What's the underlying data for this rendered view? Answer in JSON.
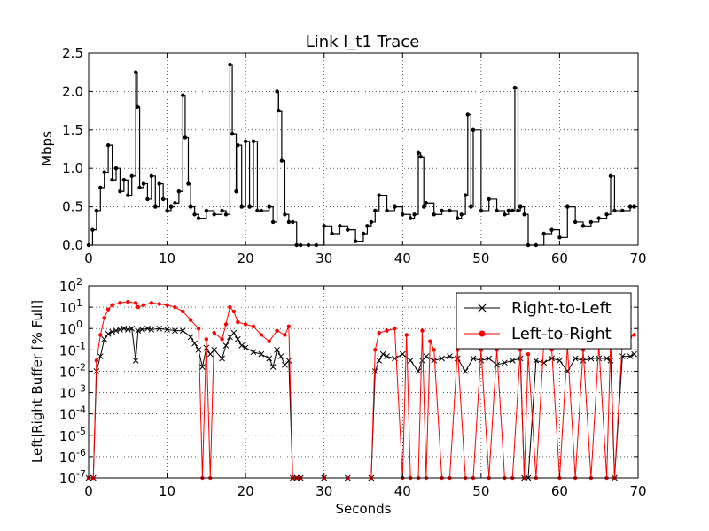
{
  "chart_data": [
    {
      "type": "line",
      "title": "Link l_t1 Trace",
      "xlabel": "",
      "ylabel": "Mbps",
      "xlim": [
        0,
        70
      ],
      "ylim": [
        0,
        2.5
      ],
      "grid": true,
      "xticks": [
        0,
        10,
        20,
        30,
        40,
        50,
        60,
        70
      ],
      "yticks": [
        0.0,
        0.5,
        1.0,
        1.5,
        2.0,
        2.5
      ],
      "xtick_labels": [
        "0",
        "10",
        "20",
        "30",
        "40",
        "50",
        "60",
        "70"
      ],
      "ytick_labels": [
        "0.0",
        "0.5",
        "1.0",
        "1.5",
        "2.0",
        "2.5"
      ],
      "color": "#000000",
      "x": [
        0.0,
        0.5,
        1.0,
        1.5,
        2.0,
        2.5,
        3.0,
        3.5,
        4.0,
        4.5,
        5.0,
        5.5,
        6.0,
        6.2,
        6.5,
        7.0,
        7.5,
        8.0,
        8.5,
        9.0,
        9.5,
        10.0,
        10.5,
        11.0,
        11.5,
        12.0,
        12.3,
        12.7,
        13.0,
        13.5,
        14.0,
        15.0,
        16.0,
        17.0,
        17.5,
        18.0,
        18.3,
        18.8,
        19.0,
        19.5,
        20.0,
        20.5,
        21.0,
        21.5,
        22.0,
        23.0,
        23.5,
        24.0,
        24.2,
        24.6,
        25.0,
        25.5,
        26.0,
        26.5,
        27.0,
        28.0,
        29.0,
        30.0,
        31.0,
        32.0,
        33.0,
        34.0,
        35.0,
        35.5,
        36.0,
        36.5,
        37.0,
        38.0,
        39.0,
        40.0,
        41.0,
        41.5,
        42.0,
        42.3,
        42.7,
        43.0,
        44.0,
        45.0,
        46.0,
        47.0,
        47.5,
        48.0,
        48.3,
        48.7,
        49.0,
        50.0,
        51.0,
        52.0,
        53.0,
        53.5,
        54.0,
        54.3,
        54.7,
        55.0,
        55.5,
        56.0,
        57.0,
        58.0,
        59.0,
        60.0,
        61.0,
        62.0,
        63.0,
        64.0,
        65.0,
        66.0,
        66.5,
        67.0,
        68.0,
        69.0,
        69.5
      ],
      "y": [
        0.0,
        0.2,
        0.45,
        0.75,
        0.95,
        1.3,
        0.85,
        1.0,
        0.7,
        0.85,
        0.65,
        0.9,
        2.25,
        1.8,
        0.75,
        0.8,
        0.6,
        0.9,
        0.5,
        0.8,
        0.6,
        0.45,
        0.5,
        0.55,
        0.7,
        1.95,
        1.4,
        0.8,
        0.5,
        0.4,
        0.35,
        0.45,
        0.4,
        0.45,
        0.4,
        2.35,
        1.45,
        0.7,
        1.3,
        0.5,
        1.35,
        0.5,
        1.35,
        0.45,
        0.45,
        0.5,
        0.3,
        2.0,
        1.75,
        1.1,
        0.4,
        0.3,
        0.3,
        0.0,
        0.0,
        0.0,
        0.0,
        0.25,
        0.15,
        0.25,
        0.2,
        0.05,
        0.15,
        0.25,
        0.3,
        0.45,
        0.65,
        0.45,
        0.5,
        0.4,
        0.35,
        0.4,
        1.2,
        1.15,
        0.5,
        0.55,
        0.4,
        0.45,
        0.45,
        0.35,
        0.4,
        0.65,
        1.7,
        0.5,
        1.5,
        0.45,
        0.6,
        0.45,
        0.4,
        0.45,
        0.45,
        2.05,
        0.45,
        0.5,
        0.4,
        0.0,
        0.0,
        0.15,
        0.2,
        0.1,
        0.5,
        0.3,
        0.25,
        0.3,
        0.35,
        0.4,
        0.9,
        0.45,
        0.45,
        0.5,
        0.5
      ]
    },
    {
      "type": "line",
      "title": "",
      "xlabel": "Seconds",
      "ylabel": "Left|Right Buffer [% Full]",
      "xlim": [
        0,
        70
      ],
      "ylim": [
        1e-07,
        100
      ],
      "yscale": "log",
      "grid": true,
      "xticks": [
        0,
        10,
        20,
        30,
        40,
        50,
        60,
        70
      ],
      "xtick_labels": [
        "0",
        "10",
        "20",
        "30",
        "40",
        "50",
        "60",
        "70"
      ],
      "yticks": [
        -7,
        -6,
        -5,
        -4,
        -3,
        -2,
        -1,
        0,
        1,
        2
      ],
      "ytick_labels": [
        "10",
        "10",
        "10",
        "10",
        "10",
        "10",
        "10",
        "10",
        "10",
        "10"
      ],
      "ytick_exponents": [
        "-7",
        "-6",
        "-5",
        "-4",
        "-3",
        "-2",
        "-1",
        "0",
        "1",
        "2"
      ],
      "legend_position": "top-right",
      "series": [
        {
          "name": "Right-to-Left",
          "color": "#000000",
          "marker": "x",
          "x": [
            0.0,
            0.6,
            1.0,
            1.5,
            2.0,
            2.5,
            3.0,
            3.5,
            4.0,
            4.5,
            5.0,
            5.5,
            6.0,
            6.3,
            6.8,
            7.5,
            8.0,
            9.0,
            10.0,
            11.0,
            12.0,
            13.0,
            13.5,
            14.0,
            14.5,
            15.0,
            15.5,
            16.0,
            17.0,
            17.5,
            18.0,
            18.5,
            19.0,
            19.5,
            20.0,
            21.0,
            22.0,
            23.0,
            23.5,
            24.0,
            24.5,
            25.0,
            25.5,
            26.0,
            26.5,
            27.0,
            30.0,
            33.0,
            36.0,
            36.5,
            37.0,
            37.5,
            38.0,
            39.0,
            40.0,
            41.0,
            42.0,
            42.5,
            43.0,
            44.0,
            45.0,
            46.0,
            47.0,
            48.0,
            49.0,
            50.0,
            51.0,
            52.0,
            53.0,
            54.0,
            55.0,
            55.5,
            56.0,
            57.0,
            58.0,
            59.0,
            60.0,
            61.0,
            62.0,
            63.0,
            64.0,
            65.0,
            66.0,
            66.5,
            67.0,
            68.0,
            69.0,
            69.5
          ],
          "y_log10": [
            -7,
            -7,
            -2,
            -1.3,
            -0.5,
            -0.25,
            -0.15,
            -0.1,
            -0.05,
            0.0,
            -0.05,
            0.0,
            -1.5,
            -0.1,
            -0.05,
            0.0,
            -0.05,
            0.0,
            -0.05,
            -0.1,
            -0.1,
            -0.4,
            -0.7,
            -1.0,
            -1.8,
            -0.9,
            -1.2,
            -1.0,
            -1.4,
            -0.8,
            -0.4,
            -0.2,
            -0.5,
            -0.8,
            -0.9,
            -1.1,
            -1.2,
            -1.4,
            -1.8,
            -1.0,
            -1.3,
            -1.7,
            -1.5,
            -7,
            -7,
            -7,
            -7,
            -7,
            -7,
            -2.0,
            -1.5,
            -1.2,
            -1.3,
            -1.4,
            -1.2,
            -1.5,
            -2.0,
            -1.5,
            -1.3,
            -1.5,
            -1.4,
            -1.3,
            -1.4,
            -2.0,
            -1.4,
            -1.5,
            -1.4,
            -1.7,
            -1.6,
            -1.5,
            -1.4,
            -7,
            -7,
            -1.5,
            -1.6,
            -1.4,
            -1.5,
            -2.0,
            -1.4,
            -1.5,
            -1.4,
            -1.4,
            -1.4,
            -1.5,
            -7,
            -1.3,
            -1.3,
            -1.2
          ]
        },
        {
          "name": "Left-to-Right",
          "color": "#ff0000",
          "marker": "dot",
          "x": [
            0.0,
            0.6,
            1.0,
            1.5,
            2.0,
            2.5,
            3.0,
            4.0,
            5.0,
            6.0,
            6.3,
            7.0,
            8.0,
            9.0,
            10.0,
            11.0,
            12.0,
            13.0,
            14.0,
            14.5,
            15.0,
            15.5,
            16.0,
            17.0,
            17.5,
            18.0,
            18.5,
            19.0,
            20.0,
            21.0,
            22.0,
            23.0,
            24.0,
            25.0,
            25.5,
            26.0,
            26.5,
            27.0,
            30.0,
            33.0,
            36.0,
            36.5,
            37.0,
            38.0,
            39.0,
            40.0,
            40.5,
            41.0,
            42.0,
            42.5,
            43.0,
            43.5,
            44.0,
            45.0,
            46.0,
            47.0,
            48.0,
            49.0,
            50.0,
            51.0,
            52.0,
            53.0,
            54.0,
            55.0,
            55.5,
            56.0,
            57.0,
            58.0,
            59.0,
            60.0,
            61.0,
            62.0,
            63.0,
            64.0,
            65.0,
            66.0,
            66.5,
            67.0,
            68.0,
            69.0,
            69.5
          ],
          "y_log10": [
            -7,
            -7,
            -1.5,
            -0.3,
            0.5,
            0.9,
            1.1,
            1.2,
            1.25,
            1.2,
            1.0,
            1.1,
            1.2,
            1.15,
            1.1,
            1.0,
            0.8,
            0.4,
            0.0,
            -7,
            -0.5,
            -7,
            -0.2,
            -0.5,
            0.2,
            1.0,
            0.8,
            0.3,
            0.2,
            0.1,
            -0.3,
            -0.6,
            -0.1,
            -0.3,
            0.1,
            -7,
            -7,
            -7,
            -7,
            -7,
            -7,
            -1.0,
            -0.2,
            -0.1,
            0.0,
            -7,
            -0.3,
            -7,
            -7,
            -0.1,
            -7,
            -0.6,
            -1.0,
            -7,
            -7,
            -1.0,
            -7,
            -7,
            -1.0,
            -7,
            -1.0,
            -7,
            -7,
            -1.0,
            -7,
            -1.2,
            -7,
            -0.6,
            -1.0,
            -7,
            -0.8,
            -7,
            -1.0,
            -7,
            -0.8,
            -7,
            -0.5,
            -7,
            -0.6,
            -0.4,
            -0.3
          ]
        }
      ]
    }
  ]
}
